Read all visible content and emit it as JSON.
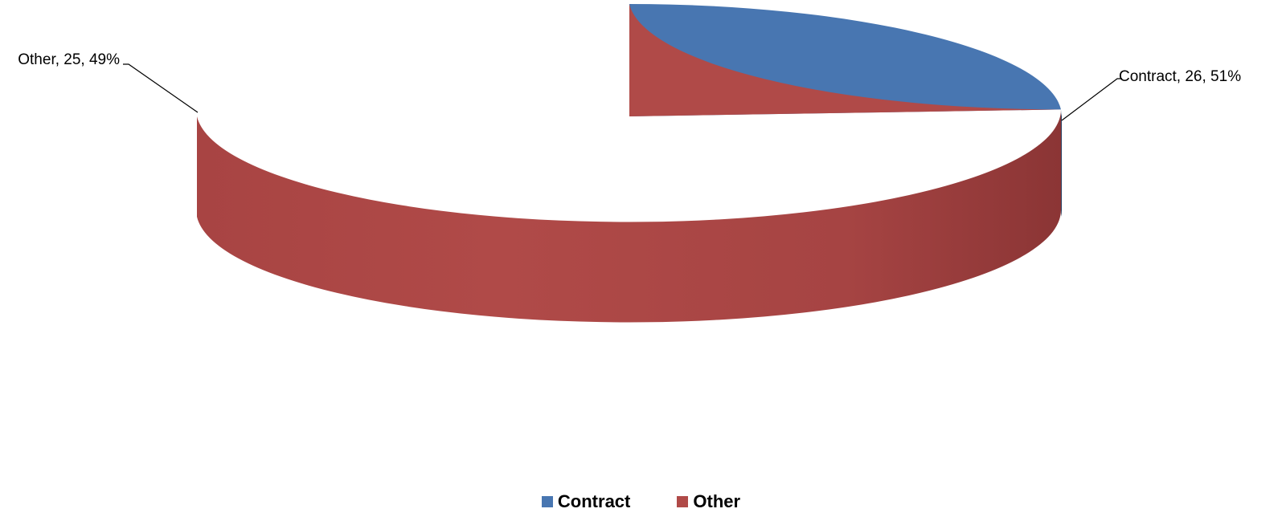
{
  "chart_data": {
    "type": "pie",
    "title": "",
    "categories": [
      "Contract",
      "Other"
    ],
    "values": [
      26,
      25
    ],
    "percentages": [
      "51%",
      "49%"
    ],
    "data_labels": [
      "Contract, 26, 51%",
      "Other, 25, 49%"
    ],
    "colors": [
      "#4876B1",
      "#B04A48"
    ],
    "legend_position": "bottom",
    "style": "3d"
  },
  "legend": {
    "items": [
      {
        "label": "Contract",
        "color": "#4876B1"
      },
      {
        "label": "Other",
        "color": "#B04A48"
      }
    ]
  }
}
